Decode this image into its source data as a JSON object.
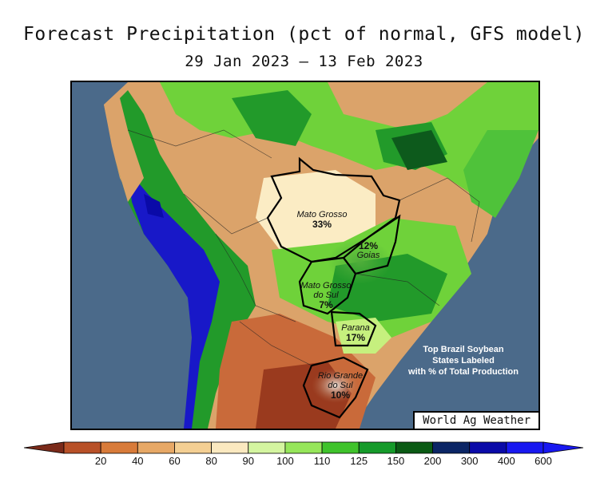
{
  "header": {
    "title": "Forecast Precipitation (pct of normal, GFS model)",
    "subtitle": "29 Jan 2023 – 13 Feb 2023"
  },
  "map": {
    "states": [
      {
        "name": "Mato Grosso",
        "percent": "33%"
      },
      {
        "name": "Goias",
        "percent": "12%"
      },
      {
        "name": "Mato Grosso do Sul",
        "name_line1": "Mato Grosso",
        "name_line2": "do Sul",
        "percent": "7%"
      },
      {
        "name": "Parana",
        "percent": "17%"
      },
      {
        "name": "Rio Grande do Sul",
        "name_line1": "Rio Grande",
        "name_line2": "do Sul",
        "percent": "10%"
      }
    ],
    "note_lines": [
      "Top Brazil Soybean",
      "States Labeled",
      "with % of Total Production"
    ],
    "credit": "World Ag Weather",
    "colors": {
      "ocean": "#4b6a8a",
      "very_dry": "#9a3a1e",
      "dry": "#c96a3a",
      "below": "#dba36a",
      "near": "#f3d7a3",
      "normal": "#fbecc4",
      "above": "#c6f07e",
      "wet": "#6fd23a",
      "very_wet": "#229a2a",
      "extreme": "#0d5a1c",
      "max": "#1818c8"
    }
  },
  "legend": {
    "ticks": [
      "20",
      "40",
      "60",
      "80",
      "90",
      "100",
      "110",
      "125",
      "150",
      "200",
      "300",
      "400",
      "600"
    ],
    "colors": [
      "#7a2a1a",
      "#b85128",
      "#d87b3a",
      "#e7a866",
      "#f4cf93",
      "#fbe9c0",
      "#d4f5a0",
      "#96e65a",
      "#3fc32b",
      "#159a2a",
      "#0a5a14",
      "#0b2565",
      "#0a0aa8",
      "#1818f0"
    ]
  }
}
